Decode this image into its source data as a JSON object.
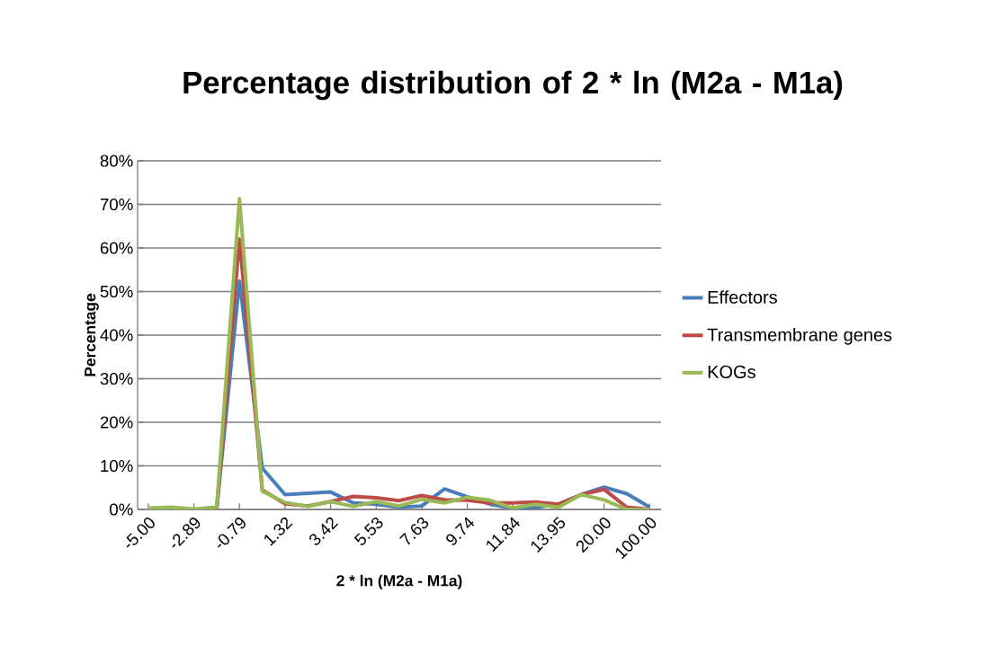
{
  "chart_data": {
    "type": "line",
    "title": "Percentage distribution of 2 * ln (M2a - M1a)",
    "xlabel": "2 * ln (M2a - M1a)",
    "ylabel": "Percentage",
    "categories": [
      "-5.00",
      null,
      "-2.89",
      null,
      "-0.79",
      null,
      "1.32",
      null,
      "3.42",
      null,
      "5.53",
      null,
      "7.63",
      null,
      "9.74",
      null,
      "11.84",
      null,
      "13.95",
      null,
      "20.00",
      null,
      "100.00"
    ],
    "series": [
      {
        "name": "Effectors",
        "color": "#4a7ebb",
        "values": [
          null,
          null,
          0,
          0,
          52.4,
          9.5,
          3.4,
          3.7,
          4.0,
          1.5,
          1.2,
          0.5,
          0.8,
          4.7,
          2.9,
          1.2,
          0.3,
          0.5,
          1.2,
          3.4,
          5.1,
          3.6,
          0.5
        ]
      },
      {
        "name": "Transmembrane genes",
        "color": "#be4b48",
        "values": [
          null,
          null,
          0,
          0,
          62,
          4.5,
          1.3,
          0.8,
          1.8,
          3.0,
          2.7,
          2.0,
          3.2,
          2.2,
          2.1,
          1.5,
          1.5,
          1.7,
          1.2,
          3.4,
          4.6,
          0.5,
          0
        ]
      },
      {
        "name": "KOGs",
        "color": "#98b954",
        "values": [
          0.3,
          0.5,
          0.1,
          0.5,
          71.3,
          4.2,
          1.6,
          0.7,
          1.8,
          0.7,
          1.8,
          0.8,
          2.3,
          1.5,
          2.8,
          2.1,
          0.3,
          1.2,
          0.5,
          3.4,
          2.2,
          0,
          0
        ]
      }
    ],
    "ylim": [
      0,
      80
    ],
    "yticks": [
      {
        "value": 0,
        "label": "0%"
      },
      {
        "value": 10,
        "label": "10%"
      },
      {
        "value": 20,
        "label": "20%"
      },
      {
        "value": 30,
        "label": "30%"
      },
      {
        "value": 40,
        "label": "40%"
      },
      {
        "value": 50,
        "label": "50%"
      },
      {
        "value": 60,
        "label": "60%"
      },
      {
        "value": 70,
        "label": "70%"
      },
      {
        "value": 80,
        "label": "80%"
      }
    ],
    "grid": "y",
    "legend": "right",
    "marker": "none",
    "line_style": "solid"
  }
}
